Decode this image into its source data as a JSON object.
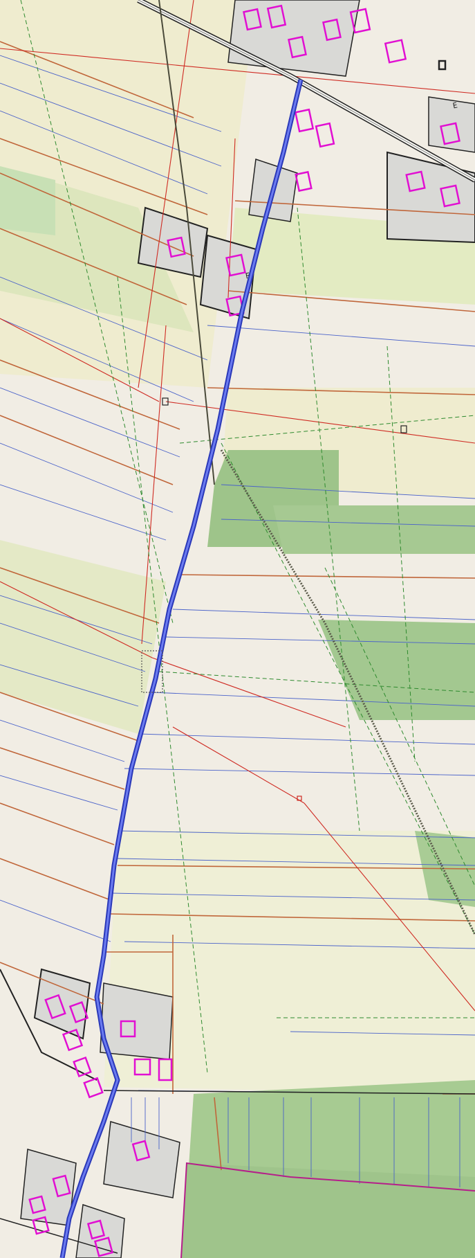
{
  "map": {
    "type": "cadastral-utility-plan",
    "colors": {
      "background": "#f1ede4",
      "field_light": "#efeccf",
      "field_green": "#dde6bd",
      "forest": "#9ec48a",
      "plot_gray": "#d9d9d6",
      "parcel_line": "#4a62c9",
      "boundary_brown": "#c0663a",
      "utility_red": "#cf2a22",
      "ditch_green": "#2e8a2e",
      "pipeline_blue": "#3d4fd9",
      "building_magenta": "#e10fd2",
      "road_black": "#222222"
    },
    "layers": [
      "pipeline-route",
      "parcel-lines",
      "boundary-lines",
      "utility-lines",
      "drainage-ditches",
      "buildings",
      "roads",
      "forest-areas"
    ],
    "labels": {
      "parcel_marker_1": "E",
      "parcel_marker_2": "F"
    }
  }
}
